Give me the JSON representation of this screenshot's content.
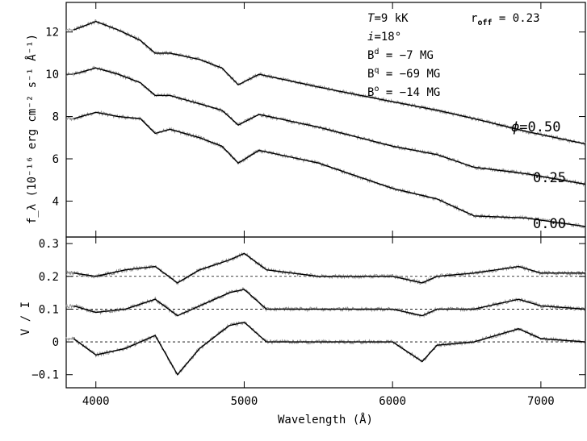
{
  "chart_data": {
    "type": "line",
    "xlabel": "Wavelength (Å)",
    "xlim": [
      3800,
      7300
    ],
    "xticks": [
      4000,
      5000,
      6000,
      7000
    ],
    "top_panel": {
      "ylabel": "f_λ (10⁻¹⁶ erg cm⁻² s⁻¹ Å⁻¹)",
      "ylim": [
        2.3,
        13.4
      ],
      "yticks": [
        4,
        6,
        8,
        10,
        12
      ],
      "phase_prefix": "ϕ=",
      "phase_labels": [
        "0.50",
        "0.25",
        "0.00"
      ],
      "series": [
        {
          "phase": "0.50",
          "x": [
            3850,
            4000,
            4150,
            4300,
            4400,
            4500,
            4700,
            4850,
            4960,
            5100,
            5500,
            6000,
            6300,
            6550,
            6900,
            7300
          ],
          "y": [
            12.1,
            12.5,
            12.1,
            11.6,
            11.0,
            11.0,
            10.7,
            10.3,
            9.5,
            10.0,
            9.4,
            8.7,
            8.3,
            7.9,
            7.3,
            6.7
          ]
        },
        {
          "phase": "0.25",
          "x": [
            3850,
            4000,
            4150,
            4300,
            4400,
            4500,
            4700,
            4850,
            4960,
            5100,
            5500,
            6000,
            6300,
            6550,
            6900,
            7300
          ],
          "y": [
            10.0,
            10.3,
            10.0,
            9.6,
            9.0,
            9.0,
            8.6,
            8.3,
            7.6,
            8.1,
            7.5,
            6.6,
            6.2,
            5.6,
            5.3,
            4.8
          ]
        },
        {
          "phase": "0.00",
          "x": [
            3850,
            4000,
            4150,
            4300,
            4400,
            4500,
            4700,
            4850,
            4960,
            5100,
            5500,
            6000,
            6300,
            6550,
            6900,
            7300
          ],
          "y": [
            7.9,
            8.2,
            8.0,
            7.9,
            7.2,
            7.4,
            7.0,
            6.6,
            5.8,
            6.4,
            5.8,
            4.6,
            4.1,
            3.3,
            3.2,
            2.8
          ]
        }
      ]
    },
    "bottom_panel": {
      "ylabel": "V / I",
      "ylim": [
        -0.14,
        0.32
      ],
      "yticks": [
        -0.1,
        0,
        0.1,
        0.2,
        0.3
      ],
      "ytick_labels": [
        "−0.1",
        "0",
        "0.1",
        "0.2",
        "0.3"
      ],
      "zero_lines": [
        0.0,
        0.1,
        0.2
      ],
      "series": [
        {
          "offset": 0.2,
          "x": [
            3850,
            4000,
            4200,
            4400,
            4550,
            4700,
            4900,
            5000,
            5150,
            5500,
            6000,
            6200,
            6300,
            6550,
            6850,
            7000,
            7300
          ],
          "y": [
            0.21,
            0.2,
            0.22,
            0.23,
            0.18,
            0.22,
            0.25,
            0.27,
            0.22,
            0.2,
            0.2,
            0.18,
            0.2,
            0.21,
            0.23,
            0.21,
            0.21
          ]
        },
        {
          "offset": 0.1,
          "x": [
            3850,
            4000,
            4200,
            4400,
            4550,
            4700,
            4900,
            5000,
            5150,
            5500,
            6000,
            6200,
            6300,
            6550,
            6850,
            7000,
            7300
          ],
          "y": [
            0.11,
            0.09,
            0.1,
            0.13,
            0.08,
            0.11,
            0.15,
            0.16,
            0.1,
            0.1,
            0.1,
            0.08,
            0.1,
            0.1,
            0.13,
            0.11,
            0.1
          ]
        },
        {
          "offset": 0.0,
          "x": [
            3850,
            4000,
            4200,
            4400,
            4550,
            4700,
            4900,
            5000,
            5150,
            5500,
            6000,
            6200,
            6300,
            6550,
            6850,
            7000,
            7300
          ],
          "y": [
            0.01,
            -0.04,
            -0.02,
            0.02,
            -0.1,
            -0.02,
            0.05,
            0.06,
            0.0,
            0.0,
            0.0,
            -0.06,
            -0.01,
            0.0,
            0.04,
            0.01,
            0.0
          ]
        }
      ]
    },
    "annotations": {
      "T_var": "T",
      "T_val": "=9 kK",
      "i_var": "i",
      "i_val": "=18°",
      "Bd_base": "B",
      "Bd_sup": "d",
      "Bd_val": " = −7 MG",
      "Bq_base": "B",
      "Bq_sup": "q",
      "Bq_val": " = −69 MG",
      "Bo_base": "B",
      "Bo_sup": "o",
      "Bo_val": " = −14 MG",
      "roff_base": "r",
      "roff_sub": "off",
      "roff_val": " = 0.23"
    },
    "colors": {
      "model": "#000000",
      "observed": "#8c8c8c"
    }
  }
}
